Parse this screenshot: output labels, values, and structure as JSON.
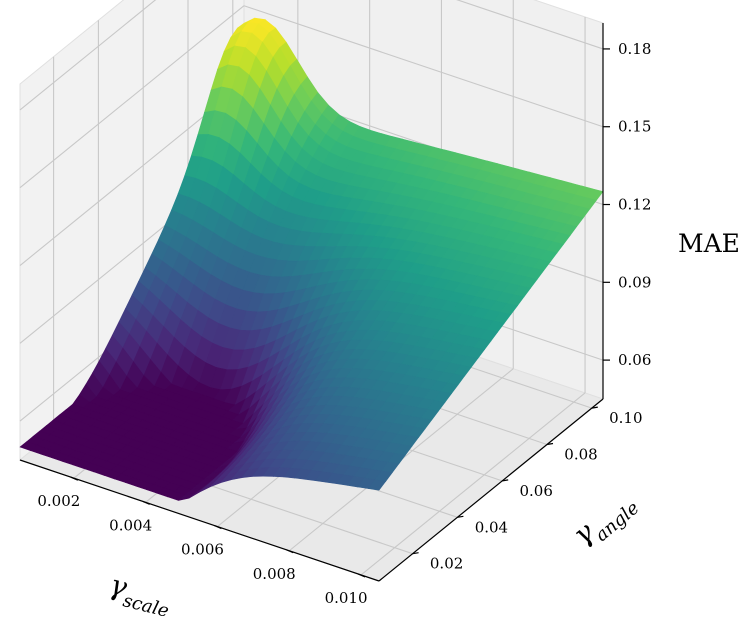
{
  "chart_data": {
    "type": "surface",
    "colormap": "viridis",
    "axes": {
      "x": {
        "symbol": "γ",
        "subscript": "scale",
        "ticks": [
          0.002,
          0.004,
          0.006,
          0.008,
          0.01
        ],
        "tick_labels": [
          "0.002",
          "0.004",
          "0.006",
          "0.008",
          "0.010"
        ],
        "range": [
          0.0005,
          0.0105
        ]
      },
      "y": {
        "symbol": "γ",
        "subscript": "angle",
        "ticks": [
          0.02,
          0.04,
          0.06,
          0.08,
          0.1
        ],
        "tick_labels": [
          "0.02",
          "0.04",
          "0.06",
          "0.08",
          "0.10"
        ],
        "range": [
          0.005,
          0.105
        ]
      },
      "z": {
        "label": "MAE",
        "ticks": [
          0.06,
          0.09,
          0.12,
          0.15,
          0.18
        ],
        "tick_labels": [
          "0.06",
          "0.09",
          "0.12",
          "0.15",
          "0.18"
        ],
        "range": [
          0.045,
          0.19
        ]
      }
    },
    "grid": true,
    "surface": {
      "x": [
        0.0005,
        0.0105
      ],
      "y": [
        0.005,
        0.105
      ],
      "z_corners": {
        "x_min_y_min": 0.055,
        "x_max_y_min": 0.08,
        "x_min_y_max": 0.115,
        "x_max_y_max": 0.125
      },
      "z_min": 0.05,
      "z_min_location": [
        0.003,
        0.03
      ]
    }
  }
}
